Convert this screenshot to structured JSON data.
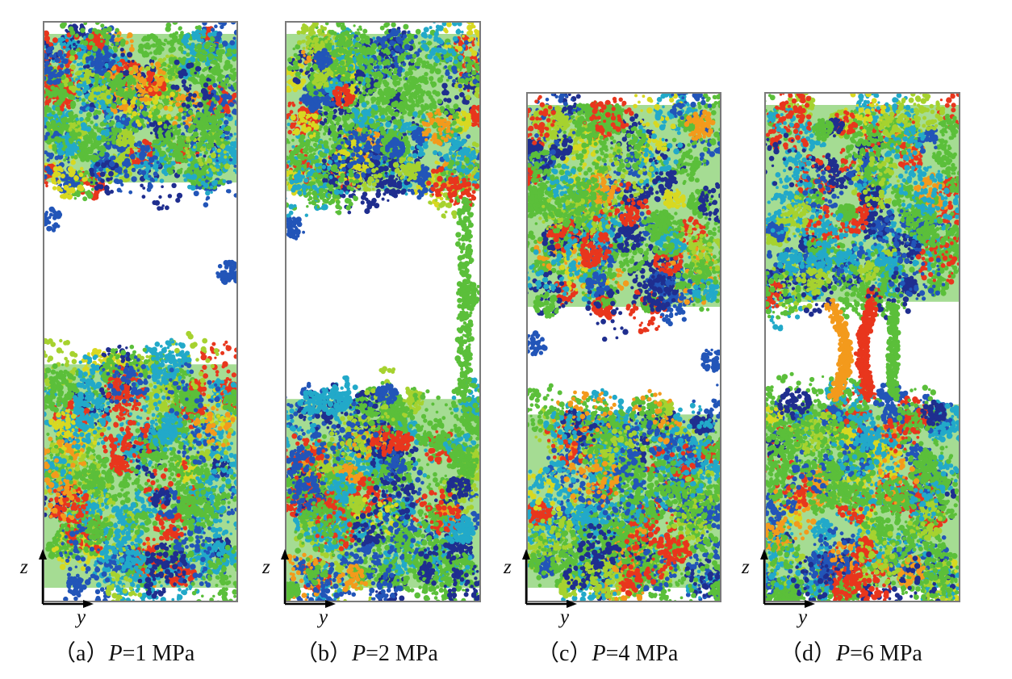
{
  "palette": {
    "green": "#5bbf3a",
    "lime": "#a6d22f",
    "yellow": "#d8d821",
    "cyan": "#22a9c9",
    "blue": "#2255b8",
    "navy": "#1f2e8f",
    "orange": "#f39a1c",
    "red": "#e8361d"
  },
  "axes": {
    "vertical": "z",
    "horizontal": "y"
  },
  "panels": [
    {
      "id": "a",
      "open": "（",
      "letter": "a",
      "close": "）",
      "var": "P",
      "rest": "=1 MPa",
      "gap_frac": [
        0.285,
        0.58
      ],
      "bridge": "none"
    },
    {
      "id": "b",
      "open": "（",
      "letter": "b",
      "close": "）",
      "var": "P",
      "rest": "=2 MPa",
      "gap_frac": [
        0.3,
        0.64
      ],
      "bridge": "edge"
    },
    {
      "id": "c",
      "open": "（",
      "letter": "c",
      "close": "）",
      "var": "P",
      "rest": "=4 MPa",
      "gap_frac": [
        0.43,
        0.62
      ],
      "bridge": "none"
    },
    {
      "id": "d",
      "open": "（",
      "letter": "d",
      "close": "）",
      "var": "P",
      "rest": "=6 MPa",
      "gap_frac": [
        0.42,
        0.6
      ],
      "bridge": "strands"
    }
  ]
}
